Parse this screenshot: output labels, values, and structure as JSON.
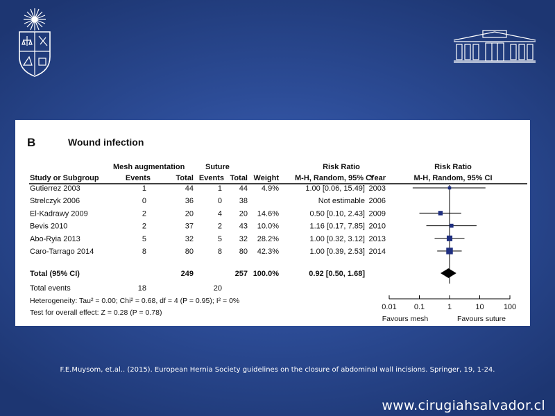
{
  "chart_data": {
    "type": "forest",
    "panel_letter": "B",
    "title": "Wound infection",
    "group_labels": {
      "experimental": "Mesh augmentation",
      "control": "Suture"
    },
    "headers": {
      "study": "Study or Subgroup",
      "exp_events": "Events",
      "exp_total": "Total",
      "ctl_events": "Events",
      "ctl_total": "Total",
      "weight": "Weight",
      "rr": "Risk Ratio",
      "rr_sub": "M-H, Random, 95% CI",
      "year": "Year",
      "plot": "Risk Ratio",
      "plot_sub": "M-H, Random, 95% CI"
    },
    "studies": [
      {
        "name": "Gutierrez 2003",
        "exp_events": "1",
        "exp_total": "44",
        "ctl_events": "1",
        "ctl_total": "44",
        "weight": "4.9%",
        "ci_text": "1.00 [0.06, 15.49]",
        "year": "2003",
        "rr": 1.0,
        "lo": 0.06,
        "hi": 15.49,
        "w": 4.9
      },
      {
        "name": "Strelczyk 2006",
        "exp_events": "0",
        "exp_total": "36",
        "ctl_events": "0",
        "ctl_total": "38",
        "weight": "",
        "ci_text": "Not estimable",
        "year": "2006",
        "rr": null,
        "lo": null,
        "hi": null,
        "w": 0
      },
      {
        "name": "El-Kadrawy 2009",
        "exp_events": "2",
        "exp_total": "20",
        "ctl_events": "4",
        "ctl_total": "20",
        "weight": "14.6%",
        "ci_text": "0.50 [0.10, 2.43]",
        "year": "2009",
        "rr": 0.5,
        "lo": 0.1,
        "hi": 2.43,
        "w": 14.6
      },
      {
        "name": "Bevis 2010",
        "exp_events": "2",
        "exp_total": "37",
        "ctl_events": "2",
        "ctl_total": "43",
        "weight": "10.0%",
        "ci_text": "1.16 [0.17, 7.85]",
        "year": "2010",
        "rr": 1.16,
        "lo": 0.17,
        "hi": 7.85,
        "w": 10.0
      },
      {
        "name": "Abo-Ryia 2013",
        "exp_events": "5",
        "exp_total": "32",
        "ctl_events": "5",
        "ctl_total": "32",
        "weight": "28.2%",
        "ci_text": "1.00 [0.32, 3.12]",
        "year": "2013",
        "rr": 1.0,
        "lo": 0.32,
        "hi": 3.12,
        "w": 28.2
      },
      {
        "name": "Caro-Tarrago 2014",
        "exp_events": "8",
        "exp_total": "80",
        "ctl_events": "8",
        "ctl_total": "80",
        "weight": "42.3%",
        "ci_text": "1.00 [0.39, 2.53]",
        "year": "2014",
        "rr": 1.0,
        "lo": 0.39,
        "hi": 2.53,
        "w": 42.3
      }
    ],
    "total": {
      "name": "Total (95% CI)",
      "exp_total": "249",
      "ctl_total": "257",
      "weight": "100.0%",
      "ci_text": "0.92 [0.50, 1.68]",
      "rr": 0.92,
      "lo": 0.5,
      "hi": 1.68
    },
    "total_events": {
      "label": "Total events",
      "exp": "18",
      "ctl": "20"
    },
    "heterogeneity": "Heterogeneity: Tau² = 0.00; Chi² = 0.68, df = 4 (P = 0.95); I² = 0%",
    "overall_effect": "Test for overall effect: Z = 0.28 (P = 0.78)",
    "axis": {
      "scale": "log",
      "ticks": [
        0.01,
        0.1,
        1,
        10,
        100
      ],
      "tick_labels": [
        "0.01",
        "0.1",
        "1",
        "10",
        "100"
      ],
      "xlim": [
        0.01,
        100
      ]
    },
    "favours_left": "Favours mesh",
    "favours_right": "Favours suture",
    "colors": {
      "square": "#1f2f80",
      "diamond": "#000000"
    }
  },
  "citation": "F.E.Muysom, et.al.. (2015). European Hernia Society guidelines on the closure of abdominal wall incisions. Springer, 19, 1-24.",
  "website": "www.cirugiahsalvador.cl",
  "logos": {
    "left": "university-crest-icon",
    "right": "hospital-building-icon"
  }
}
